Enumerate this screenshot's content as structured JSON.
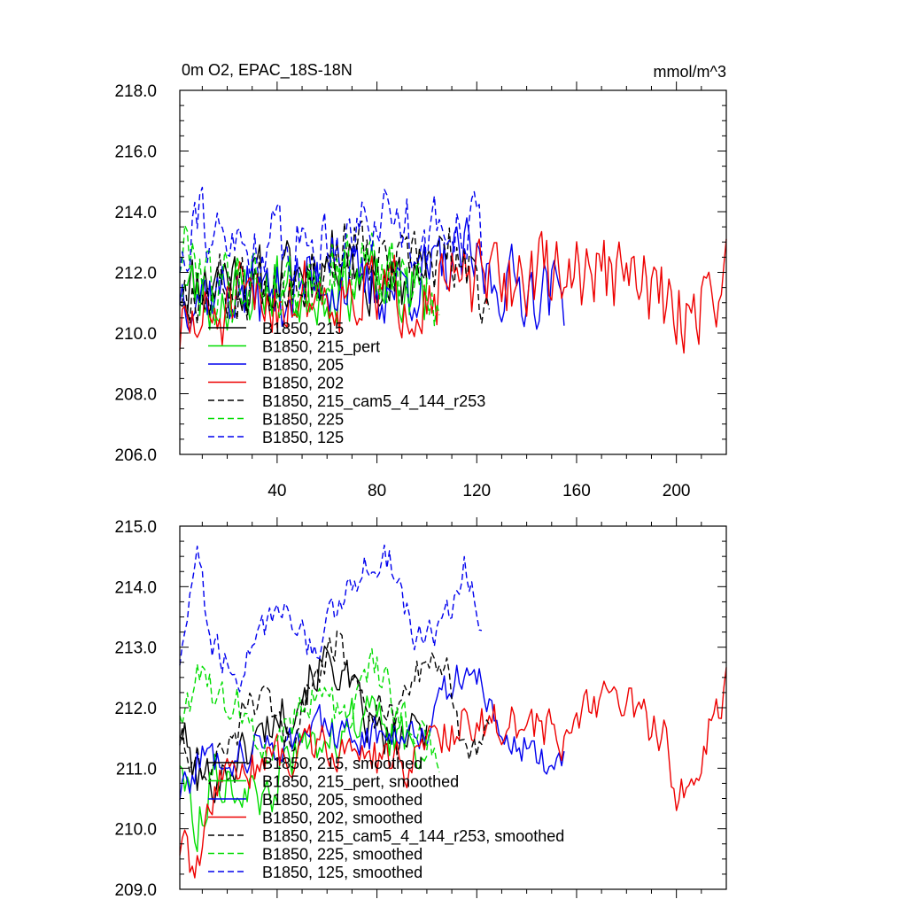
{
  "chart_data": [
    {
      "type": "line",
      "title_left": "0m O2, EPAC_18S-18N",
      "title_right": "mmol/m^3",
      "xlim": [
        1,
        220
      ],
      "ylim": [
        206.0,
        218.0
      ],
      "xticks": [
        40,
        80,
        120,
        160,
        200
      ],
      "xtick_labels": [
        "40",
        "80",
        "120",
        "160",
        "200"
      ],
      "yticks": [
        206,
        208,
        210,
        212,
        214,
        216,
        218
      ],
      "ytick_labels": [
        "206.0",
        "208.0",
        "210.0",
        "212.0",
        "214.0",
        "216.0",
        "218.0"
      ],
      "grid": false,
      "legend_position": "lower-left inside",
      "series": [
        {
          "name": "B1850, 215",
          "color": "#000000",
          "dash": "solid",
          "n": 100,
          "anchors": [
            [
              1,
              211.5
            ],
            [
              10,
              211.8
            ],
            [
              20,
              212.0
            ],
            [
              30,
              211.6
            ],
            [
              40,
              211.8
            ],
            [
              50,
              212.0
            ],
            [
              60,
              212.4
            ],
            [
              68,
              212.8
            ],
            [
              75,
              211.8
            ],
            [
              85,
              211.5
            ],
            [
              100,
              211.8
            ]
          ],
          "amp": 1.6,
          "seed": 11
        },
        {
          "name": "B1850, 215_pert",
          "color": "#00dd00",
          "dash": "solid",
          "n": 100,
          "anchors": [
            [
              1,
              211.8
            ],
            [
              10,
              211.0
            ],
            [
              20,
              211.3
            ],
            [
              30,
              211.5
            ],
            [
              40,
              211.6
            ],
            [
              50,
              211.2
            ],
            [
              60,
              211.6
            ],
            [
              75,
              211.7
            ],
            [
              90,
              211.4
            ],
            [
              100,
              211.2
            ]
          ],
          "amp": 1.7,
          "seed": 23
        },
        {
          "name": "B1850, 205",
          "color": "#0000ee",
          "dash": "solid",
          "n": 155,
          "anchors": [
            [
              1,
              211.5
            ],
            [
              20,
              211.4
            ],
            [
              40,
              211.3
            ],
            [
              60,
              211.8
            ],
            [
              80,
              211.4
            ],
            [
              100,
              211.8
            ],
            [
              115,
              212.5
            ],
            [
              125,
              211.8
            ],
            [
              140,
              211.5
            ],
            [
              155,
              211.3
            ]
          ],
          "amp": 1.7,
          "seed": 37
        },
        {
          "name": "B1850, 202",
          "color": "#ee0000",
          "dash": "solid",
          "n": 220,
          "anchors": [
            [
              1,
              210.0
            ],
            [
              15,
              210.5
            ],
            [
              30,
              211.0
            ],
            [
              50,
              211.3
            ],
            [
              70,
              211.4
            ],
            [
              90,
              211.2
            ],
            [
              110,
              211.6
            ],
            [
              130,
              211.7
            ],
            [
              150,
              212.0
            ],
            [
              170,
              212.0
            ],
            [
              190,
              211.5
            ],
            [
              200,
              210.5
            ],
            [
              210,
              211.0
            ],
            [
              220,
              212.0
            ]
          ],
          "amp": 1.8,
          "seed": 51
        },
        {
          "name": "B1850, 215_cam5_4_144_r253",
          "color": "#000000",
          "dash": "dashed",
          "n": 125,
          "anchors": [
            [
              1,
              211.5
            ],
            [
              20,
              211.5
            ],
            [
              40,
              211.8
            ],
            [
              60,
              212.3
            ],
            [
              70,
              213.0
            ],
            [
              80,
              212.0
            ],
            [
              100,
              212.2
            ],
            [
              110,
              212.5
            ],
            [
              125,
              211.0
            ]
          ],
          "amp": 1.6,
          "seed": 67
        },
        {
          "name": "B1850, 225",
          "color": "#00dd00",
          "dash": "dashed",
          "n": 105,
          "anchors": [
            [
              1,
              212.5
            ],
            [
              5,
              213.0
            ],
            [
              15,
              211.5
            ],
            [
              30,
              211.8
            ],
            [
              45,
              211.5
            ],
            [
              60,
              212.0
            ],
            [
              75,
              212.5
            ],
            [
              90,
              211.6
            ],
            [
              105,
              211.2
            ]
          ],
          "amp": 1.7,
          "seed": 79
        },
        {
          "name": "B1850, 125",
          "color": "#0000ee",
          "dash": "dashed",
          "n": 122,
          "anchors": [
            [
              1,
              212.5
            ],
            [
              8,
              214.5
            ],
            [
              15,
              212.8
            ],
            [
              30,
              212.8
            ],
            [
              40,
              213.0
            ],
            [
              55,
              212.9
            ],
            [
              70,
              213.5
            ],
            [
              87,
              214.0
            ],
            [
              100,
              213.0
            ],
            [
              115,
              214.0
            ],
            [
              122,
              213.2
            ]
          ],
          "amp": 1.7,
          "seed": 91
        }
      ]
    },
    {
      "type": "line",
      "xlim": [
        1,
        220
      ],
      "ylim": [
        209.0,
        215.0
      ],
      "xticks": [
        40,
        80,
        120,
        160,
        200
      ],
      "yticks": [
        209,
        210,
        211,
        212,
        213,
        214,
        215
      ],
      "ytick_labels": [
        "209.0",
        "210.0",
        "211.0",
        "212.0",
        "213.0",
        "214.0",
        "215.0"
      ],
      "grid": false,
      "legend_position": "lower-left inside",
      "series": [
        {
          "name": "B1850, 215, smoothed",
          "color": "#000000",
          "dash": "solid",
          "n": 100,
          "anchors": [
            [
              1,
              211.7
            ],
            [
              8,
              210.8
            ],
            [
              18,
              210.9
            ],
            [
              30,
              211.4
            ],
            [
              38,
              211.8
            ],
            [
              45,
              212.0
            ],
            [
              55,
              212.6
            ],
            [
              62,
              212.8
            ],
            [
              68,
              212.4
            ],
            [
              75,
              211.8
            ],
            [
              85,
              211.4
            ],
            [
              100,
              211.6
            ]
          ],
          "amp": 0.55,
          "seed": 101
        },
        {
          "name": "B1850, 215_pert, smoothed",
          "color": "#00dd00",
          "dash": "solid",
          "n": 100,
          "anchors": [
            [
              1,
              211.2
            ],
            [
              8,
              210.0
            ],
            [
              15,
              211.0
            ],
            [
              25,
              210.7
            ],
            [
              35,
              210.3
            ],
            [
              45,
              211.2
            ],
            [
              55,
              211.4
            ],
            [
              65,
              211.6
            ],
            [
              75,
              212.0
            ],
            [
              85,
              211.5
            ],
            [
              100,
              211.3
            ]
          ],
          "amp": 0.55,
          "seed": 113
        },
        {
          "name": "B1850, 205, smoothed",
          "color": "#0000ee",
          "dash": "solid",
          "n": 155,
          "anchors": [
            [
              1,
              210.6
            ],
            [
              10,
              211.2
            ],
            [
              20,
              211.2
            ],
            [
              40,
              211.4
            ],
            [
              55,
              211.7
            ],
            [
              70,
              211.5
            ],
            [
              85,
              211.6
            ],
            [
              100,
              211.7
            ],
            [
              110,
              212.4
            ],
            [
              120,
              212.6
            ],
            [
              130,
              211.5
            ],
            [
              140,
              211.4
            ],
            [
              150,
              211.0
            ],
            [
              155,
              211.1
            ]
          ],
          "amp": 0.45,
          "seed": 127
        },
        {
          "name": "B1850, 202, smoothed",
          "color": "#ee0000",
          "dash": "solid",
          "n": 220,
          "anchors": [
            [
              1,
              209.7
            ],
            [
              8,
              209.3
            ],
            [
              15,
              210.6
            ],
            [
              25,
              211.0
            ],
            [
              40,
              211.2
            ],
            [
              55,
              211.4
            ],
            [
              70,
              211.3
            ],
            [
              90,
              211.0
            ],
            [
              105,
              211.6
            ],
            [
              120,
              211.8
            ],
            [
              140,
              211.7
            ],
            [
              155,
              211.5
            ],
            [
              165,
              212.0
            ],
            [
              175,
              212.3
            ],
            [
              185,
              211.8
            ],
            [
              195,
              211.6
            ],
            [
              200,
              210.3
            ],
            [
              208,
              211.0
            ],
            [
              215,
              211.8
            ],
            [
              220,
              212.4
            ]
          ],
          "amp": 0.5,
          "seed": 139
        },
        {
          "name": "B1850, 215_cam5_4_144_r253, smoothed",
          "color": "#000000",
          "dash": "dashed",
          "n": 125,
          "anchors": [
            [
              1,
              211.5
            ],
            [
              10,
              211.0
            ],
            [
              20,
              211.2
            ],
            [
              30,
              212.2
            ],
            [
              45,
              211.5
            ],
            [
              55,
              212.4
            ],
            [
              65,
              213.2
            ],
            [
              75,
              212.0
            ],
            [
              88,
              211.8
            ],
            [
              100,
              212.8
            ],
            [
              108,
              212.5
            ],
            [
              115,
              211.2
            ],
            [
              125,
              211.6
            ]
          ],
          "amp": 0.45,
          "seed": 151
        },
        {
          "name": "B1850, 225, smoothed",
          "color": "#00dd00",
          "dash": "dashed",
          "n": 105,
          "anchors": [
            [
              1,
              212.0
            ],
            [
              8,
              212.4
            ],
            [
              15,
              212.3
            ],
            [
              25,
              212.0
            ],
            [
              35,
              211.3
            ],
            [
              45,
              211.8
            ],
            [
              55,
              212.2
            ],
            [
              70,
              211.8
            ],
            [
              78,
              212.8
            ],
            [
              88,
              212.0
            ],
            [
              105,
              211.3
            ]
          ],
          "amp": 0.5,
          "seed": 163
        },
        {
          "name": "B1850, 125, smoothed",
          "color": "#0000ee",
          "dash": "dashed",
          "n": 122,
          "anchors": [
            [
              1,
              212.8
            ],
            [
              8,
              214.6
            ],
            [
              14,
              213.0
            ],
            [
              25,
              212.6
            ],
            [
              35,
              213.3
            ],
            [
              45,
              213.7
            ],
            [
              55,
              212.8
            ],
            [
              65,
              213.8
            ],
            [
              75,
              214.3
            ],
            [
              85,
              214.5
            ],
            [
              95,
              213.3
            ],
            [
              105,
              213.2
            ],
            [
              115,
              214.3
            ],
            [
              122,
              213.4
            ]
          ],
          "amp": 0.4,
          "seed": 179
        }
      ]
    }
  ]
}
